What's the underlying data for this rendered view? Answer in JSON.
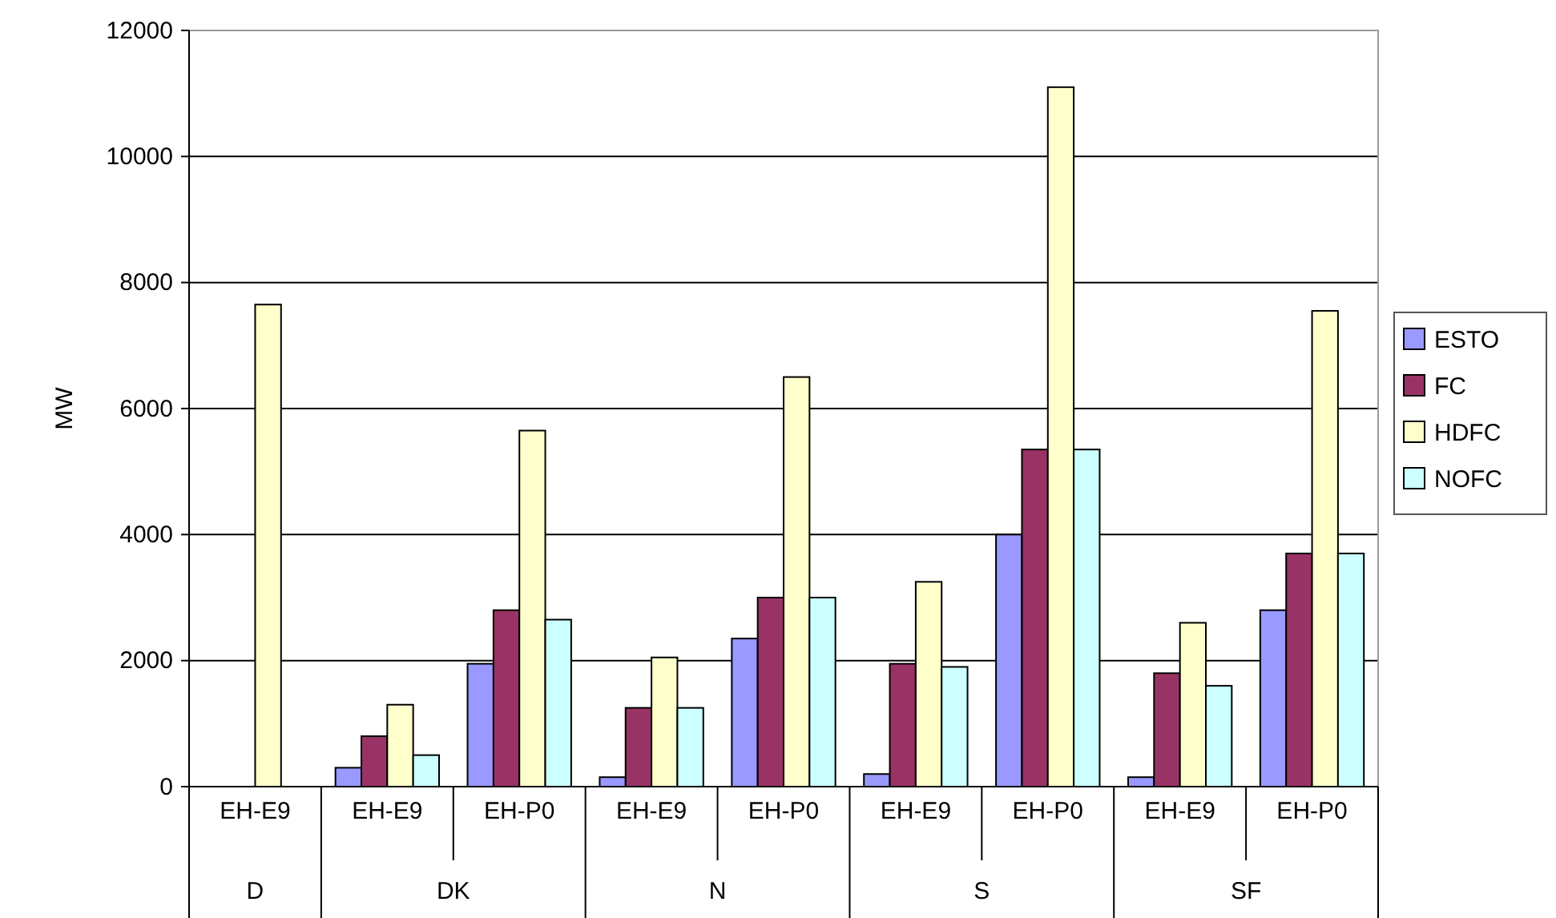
{
  "chart_data": {
    "type": "bar",
    "ylabel": "MW",
    "categories": [
      "EH-E9",
      "EH-E9",
      "EH-P0",
      "EH-E9",
      "EH-P0",
      "EH-E9",
      "EH-P0",
      "EH-E9",
      "EH-P0"
    ],
    "annotations": [
      "D",
      "DK",
      "N",
      "S",
      "SF"
    ],
    "series": [
      {
        "name": "ESTO",
        "color": "#9999ff",
        "values": [
          null,
          300,
          1950,
          150,
          2350,
          200,
          4000,
          150,
          2800
        ]
      },
      {
        "name": "FC",
        "color": "#993366",
        "values": [
          null,
          800,
          2800,
          1250,
          3000,
          1950,
          5350,
          1800,
          3700
        ]
      },
      {
        "name": "HDFC",
        "color": "#ffffcc",
        "values": [
          7650,
          1300,
          5650,
          2050,
          6500,
          3250,
          11100,
          2600,
          7550
        ]
      },
      {
        "name": "NOFC",
        "color": "#ccffff",
        "values": [
          null,
          500,
          2650,
          1250,
          3000,
          1900,
          5350,
          1600,
          3700
        ]
      }
    ],
    "ylim": [
      0,
      12000
    ],
    "yticks": [
      0,
      2000,
      4000,
      6000,
      8000,
      10000,
      12000
    ],
    "grid": "y",
    "legend": "right"
  }
}
